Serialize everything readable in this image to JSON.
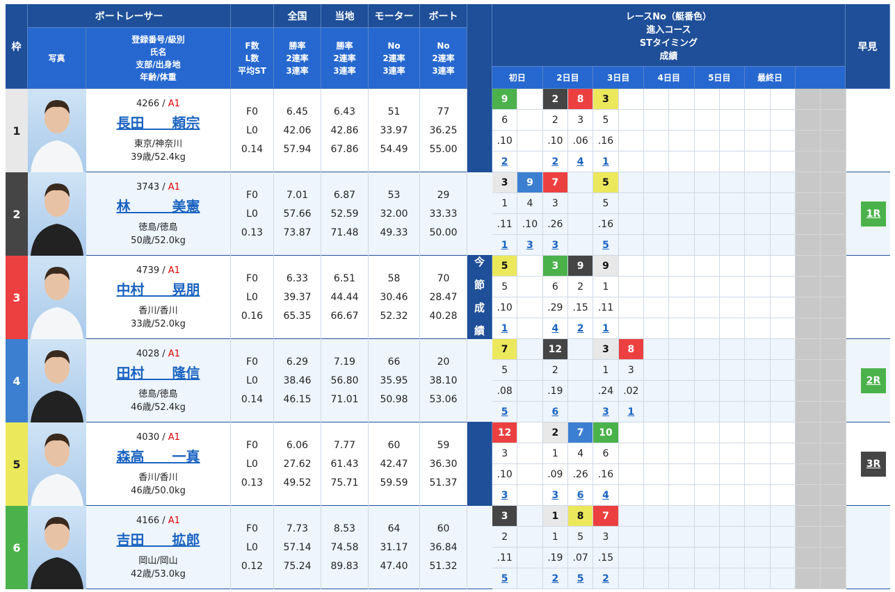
{
  "header": {
    "waku": "枠",
    "racer": "ボートレーサー",
    "national": "全国",
    "local": "当地",
    "motor": "モーター",
    "boat": "ボート",
    "photo": "写真",
    "info": [
      "登録番号/級別",
      "氏名",
      "支部/出身地",
      "年齢/体重"
    ],
    "fl": [
      "F数",
      "L数",
      "平均ST"
    ],
    "nat_sub": [
      "勝率",
      "2連率",
      "3連率"
    ],
    "loc_sub": [
      "勝率",
      "2連率",
      "3連率"
    ],
    "mot_sub": [
      "No",
      "2連率",
      "3連率"
    ],
    "boat_sub": [
      "No",
      "2連率",
      "3連率"
    ],
    "results": [
      "レースNo（艇番色）",
      "進入コース",
      "STタイミング",
      "成績"
    ],
    "hayami": "早見",
    "days": [
      "初日",
      "2日目",
      "3日目",
      "4日目",
      "5日目",
      "最終日"
    ],
    "konsetsu": [
      "今",
      "節",
      "成",
      "績"
    ]
  },
  "boat_colors": {
    "1": "#e8e8e8",
    "2": "#454545",
    "3": "#ec4040",
    "4": "#3c7fd0",
    "5": "#ece85c",
    "6": "#4bb24b"
  },
  "racers": [
    {
      "waku": "1",
      "reg": "4266",
      "cls": "A1",
      "name": "長田　　頼宗",
      "branch": "東京/神奈川",
      "age": "39歳/52.4kg",
      "f": "F0",
      "l": "L0",
      "st": "0.14",
      "nat": [
        "6.45",
        "42.06",
        "57.94"
      ],
      "loc": [
        "6.43",
        "42.86",
        "67.86"
      ],
      "motor": [
        "51",
        "33.97",
        "54.49"
      ],
      "boat": [
        "77",
        "36.25",
        "55.00"
      ],
      "results": [
        {
          "race": "9",
          "course": "6",
          "st": ".10",
          "rank": "2"
        },
        null,
        {
          "race": "2",
          "course": "2",
          "st": ".10",
          "rank": "2"
        },
        {
          "race": "8",
          "course": "3",
          "st": ".06",
          "rank": "4"
        },
        {
          "race": "3",
          "course": "5",
          "st": ".16",
          "rank": "1"
        },
        null,
        null,
        null,
        null,
        null,
        null,
        null
      ],
      "hayami": null
    },
    {
      "waku": "2",
      "reg": "3743",
      "cls": "A1",
      "name": "林　　　美憲",
      "branch": "徳島/徳島",
      "age": "50歳/52.0kg",
      "f": "F0",
      "l": "L0",
      "st": "0.13",
      "nat": [
        "7.01",
        "57.66",
        "73.87"
      ],
      "loc": [
        "6.87",
        "52.59",
        "71.48"
      ],
      "motor": [
        "53",
        "32.00",
        "49.33"
      ],
      "boat": [
        "29",
        "33.33",
        "50.00"
      ],
      "results": [
        {
          "race": "3",
          "course": "1",
          "st": ".11",
          "rank": "1"
        },
        {
          "race": "9",
          "course": "4",
          "st": ".10",
          "rank": "3"
        },
        {
          "race": "7",
          "course": "3",
          "st": ".26",
          "rank": "3"
        },
        null,
        {
          "race": "5",
          "course": "5",
          "st": ".16",
          "rank": "5"
        },
        null,
        null,
        null,
        null,
        null,
        null,
        null
      ],
      "hayami": {
        "label": "1R",
        "color": "#4bb24b"
      }
    },
    {
      "waku": "3",
      "reg": "4739",
      "cls": "A1",
      "name": "中村　　晃朋",
      "branch": "香川/香川",
      "age": "33歳/52.0kg",
      "f": "F0",
      "l": "L0",
      "st": "0.16",
      "nat": [
        "6.33",
        "39.37",
        "65.35"
      ],
      "loc": [
        "6.51",
        "44.44",
        "66.67"
      ],
      "motor": [
        "58",
        "30.46",
        "52.32"
      ],
      "boat": [
        "70",
        "28.47",
        "40.28"
      ],
      "results": [
        {
          "race": "5",
          "course": "5",
          "st": ".10",
          "rank": "1"
        },
        null,
        {
          "race": "3",
          "course": "6",
          "st": ".29",
          "rank": "4"
        },
        {
          "race": "9",
          "course": "2",
          "st": ".15",
          "rank": "2"
        },
        {
          "race": "9",
          "course": "1",
          "st": ".11",
          "rank": "1"
        },
        null,
        null,
        null,
        null,
        null,
        null,
        null
      ],
      "hayami": null
    },
    {
      "waku": "4",
      "reg": "4028",
      "cls": "A1",
      "name": "田村　　隆信",
      "branch": "徳島/徳島",
      "age": "46歳/52.4kg",
      "f": "F0",
      "l": "L0",
      "st": "0.14",
      "nat": [
        "6.29",
        "38.46",
        "46.15"
      ],
      "loc": [
        "7.19",
        "56.80",
        "71.01"
      ],
      "motor": [
        "66",
        "35.95",
        "50.98"
      ],
      "boat": [
        "20",
        "38.10",
        "53.06"
      ],
      "results": [
        {
          "race": "7",
          "course": "5",
          "st": ".08",
          "rank": "5"
        },
        null,
        {
          "race": "12",
          "course": "2",
          "st": ".19",
          "rank": "6"
        },
        null,
        {
          "race": "3",
          "course": "1",
          "st": ".24",
          "rank": "3"
        },
        {
          "race": "8",
          "course": "3",
          "st": ".02",
          "rank": "1"
        },
        null,
        null,
        null,
        null,
        null,
        null
      ],
      "hayami": {
        "label": "2R",
        "color": "#4bb24b"
      }
    },
    {
      "waku": "5",
      "reg": "4030",
      "cls": "A1",
      "name": "森高　　一真",
      "branch": "香川/香川",
      "age": "46歳/50.0kg",
      "f": "F0",
      "l": "L0",
      "st": "0.13",
      "nat": [
        "6.06",
        "27.62",
        "49.52"
      ],
      "loc": [
        "7.77",
        "61.43",
        "75.71"
      ],
      "motor": [
        "60",
        "42.47",
        "59.59"
      ],
      "boat": [
        "59",
        "36.30",
        "51.37"
      ],
      "results": [
        {
          "race": "12",
          "course": "3",
          "st": ".10",
          "rank": "3"
        },
        null,
        {
          "race": "2",
          "course": "1",
          "st": ".09",
          "rank": "3"
        },
        {
          "race": "7",
          "course": "4",
          "st": ".26",
          "rank": "6"
        },
        {
          "race": "10",
          "course": "6",
          "st": ".16",
          "rank": "4"
        },
        null,
        null,
        null,
        null,
        null,
        null,
        null
      ],
      "hayami": {
        "label": "3R",
        "color": "#454545"
      }
    },
    {
      "waku": "6",
      "reg": "4166",
      "cls": "A1",
      "name": "吉田　　拡郎",
      "branch": "岡山/岡山",
      "age": "42歳/53.0kg",
      "f": "F0",
      "l": "L0",
      "st": "0.12",
      "nat": [
        "7.73",
        "57.14",
        "75.24"
      ],
      "loc": [
        "8.53",
        "74.58",
        "89.83"
      ],
      "motor": [
        "64",
        "31.17",
        "47.40"
      ],
      "boat": [
        "60",
        "36.84",
        "51.32"
      ],
      "results": [
        {
          "race": "3",
          "course": "2",
          "st": ".11",
          "rank": "5"
        },
        null,
        {
          "race": "1",
          "course": "1",
          "st": ".19",
          "rank": "2"
        },
        {
          "race": "8",
          "course": "5",
          "st": ".07",
          "rank": "5"
        },
        {
          "race": "7",
          "course": "3",
          "st": ".15",
          "rank": "2"
        },
        null,
        null,
        null,
        null,
        null,
        null,
        null
      ],
      "hayami": null
    }
  ]
}
